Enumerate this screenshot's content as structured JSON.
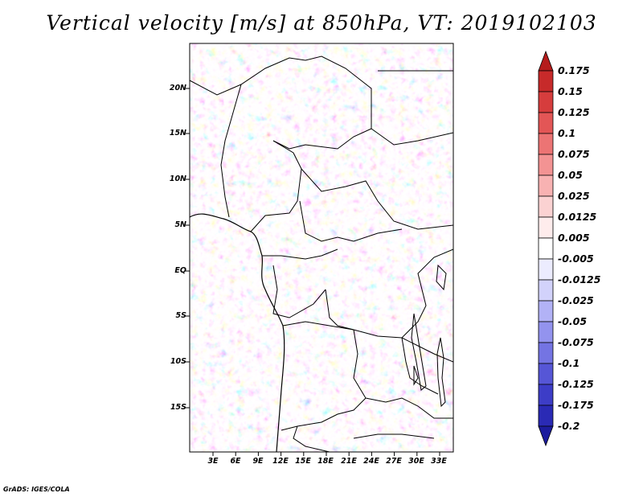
{
  "title": "Vertical velocity [m/s] at 850hPa, VT: 2019102103",
  "lat_labels": [
    "20N",
    "15N",
    "10N",
    "5N",
    "EQ",
    "5S",
    "10S",
    "15S"
  ],
  "lon_labels": [
    "3E",
    "6E",
    "9E",
    "12E",
    "15E",
    "18E",
    "21E",
    "24E",
    "27E",
    "30E",
    "33E"
  ],
  "colorbar": {
    "labels": [
      "0.175",
      "0.15",
      "0.125",
      "0.1",
      "0.075",
      "0.05",
      "0.025",
      "0.0125",
      "0.005",
      "-0.005",
      "-0.0125",
      "-0.025",
      "-0.05",
      "-0.075",
      "-0.1",
      "-0.125",
      "-0.175",
      "-0.2"
    ],
    "colors": [
      "#b51c1c",
      "#c72a2a",
      "#d63d3d",
      "#e35656",
      "#ec7474",
      "#f39393",
      "#f8b2b2",
      "#fbd2d2",
      "#feecec",
      "#ffffff",
      "#ececfe",
      "#d2d2fb",
      "#b2b2f6",
      "#9393ee",
      "#7474e3",
      "#5656d6",
      "#3d3dc7",
      "#2a2ab5",
      "#1c1c9e"
    ]
  },
  "credit": "GrADS: IGES/COLA"
}
